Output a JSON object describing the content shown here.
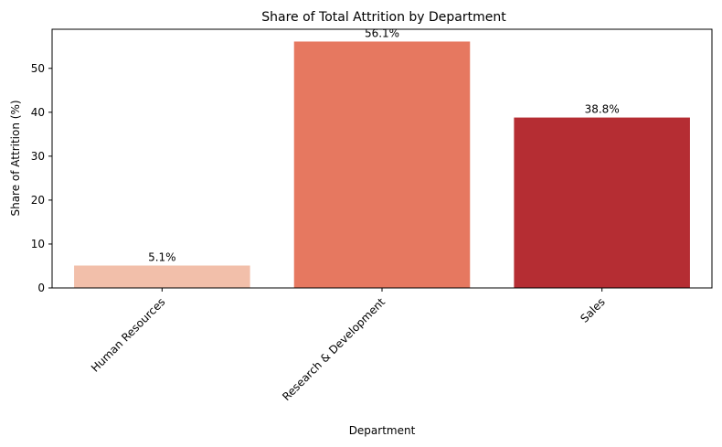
{
  "chart_data": {
    "type": "bar",
    "title": "Share of Total Attrition by Department",
    "xlabel": "Department",
    "ylabel": "Share of Attrition (%)",
    "categories": [
      "Human Resources",
      "Research & Development",
      "Sales"
    ],
    "values": [
      5.1,
      56.1,
      38.8
    ],
    "value_labels": [
      "5.1%",
      "56.1%",
      "38.8%"
    ],
    "colors": [
      "#f2bfaa",
      "#e67860",
      "#b52d33"
    ],
    "ylim": [
      0,
      58.9
    ],
    "yticks": [
      0,
      10,
      20,
      30,
      40,
      50
    ],
    "grid": false,
    "legend": "none"
  }
}
